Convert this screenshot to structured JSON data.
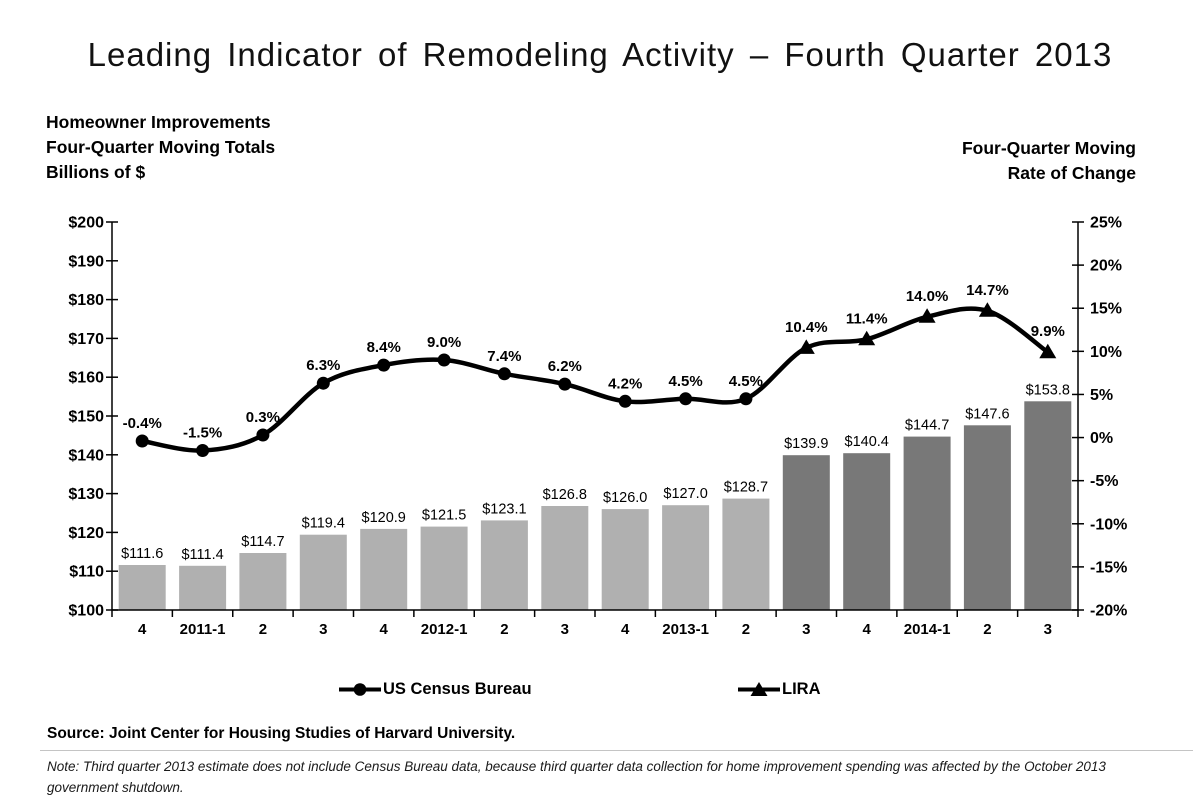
{
  "title": "Leading Indicator of Remodeling Activity – Fourth Quarter 2013",
  "left_header": {
    "lines": [
      "Homeowner Improvements",
      "Four-Quarter Moving Totals",
      "Billions of $"
    ]
  },
  "right_header": {
    "lines": [
      "Four-Quarter Moving",
      "Rate of Change"
    ]
  },
  "legend": {
    "items": [
      {
        "label": "US Census Bureau",
        "marker": "circle"
      },
      {
        "label": "LIRA",
        "marker": "triangle"
      }
    ]
  },
  "source": "Source: Joint Center for Housing Studies of Harvard University.",
  "note": "Note: Third quarter 2013 estimate does not include Census Bureau data, because third quarter data collection for home improvement spending was affected by the October 2013 government shutdown.",
  "colors": {
    "bar_light": "#b0b0b0",
    "bar_dark": "#787878",
    "line": "#000000",
    "text": "#000000",
    "divider": "#c4c4c4"
  },
  "chart_data": {
    "type": "bar+line",
    "title": "Leading Indicator of Remodeling Activity – Fourth Quarter 2013",
    "categories": [
      "4",
      "2011-1",
      "2",
      "3",
      "4",
      "2012-1",
      "2",
      "3",
      "4",
      "2013-1",
      "2",
      "3",
      "4",
      "2014-1",
      "2",
      "3"
    ],
    "left_axis": {
      "label": "Homeowner Improvements Four-Quarter Moving Totals, Billions of $",
      "min": 100,
      "max": 200,
      "ticks": [
        {
          "label": "$100",
          "value": 100
        },
        {
          "label": "$110",
          "value": 110
        },
        {
          "label": "$120",
          "value": 120
        },
        {
          "label": "$130",
          "value": 130
        },
        {
          "label": "$140",
          "value": 140
        },
        {
          "label": "$150",
          "value": 150
        },
        {
          "label": "$160",
          "value": 160
        },
        {
          "label": "$170",
          "value": 170
        },
        {
          "label": "$180",
          "value": 180
        },
        {
          "label": "$190",
          "value": 190
        },
        {
          "label": "$200",
          "value": 200
        }
      ]
    },
    "right_axis": {
      "label": "Four-Quarter Moving Rate of Change",
      "min": -20,
      "max": 25,
      "ticks": [
        {
          "label": "-20%",
          "value": -20
        },
        {
          "label": "-15%",
          "value": -15
        },
        {
          "label": "-10%",
          "value": -10
        },
        {
          "label": "-5%",
          "value": -5
        },
        {
          "label": "0%",
          "value": 0
        },
        {
          "label": "5%",
          "value": 5
        },
        {
          "label": "10%",
          "value": 10
        },
        {
          "label": "15%",
          "value": 15
        },
        {
          "label": "20%",
          "value": 20
        },
        {
          "label": "25%",
          "value": 25
        }
      ]
    },
    "series": [
      {
        "name": "Homeowner Improvements (Billions of $)",
        "type": "bar",
        "axis": "left",
        "values": [
          111.6,
          111.4,
          114.7,
          119.4,
          120.9,
          121.5,
          123.1,
          126.8,
          126.0,
          127.0,
          128.7,
          139.9,
          140.4,
          144.7,
          147.6,
          153.8
        ],
        "labels": [
          "$111.6",
          "$111.4",
          "$114.7",
          "$119.4",
          "$120.9",
          "$121.5",
          "$123.1",
          "$126.8",
          "$126.0",
          "$127.0",
          "$128.7",
          "$139.9",
          "$140.4",
          "$144.7",
          "$147.6",
          "$153.8"
        ],
        "bar_colors": [
          "light",
          "light",
          "light",
          "light",
          "light",
          "light",
          "light",
          "light",
          "light",
          "light",
          "light",
          "dark",
          "dark",
          "dark",
          "dark",
          "dark"
        ]
      },
      {
        "name": "Four-Quarter Moving Rate of Change",
        "type": "line",
        "axis": "right",
        "values": [
          -0.4,
          -1.5,
          0.3,
          6.3,
          8.4,
          9.0,
          7.4,
          6.2,
          4.2,
          4.5,
          4.5,
          10.4,
          11.4,
          14.0,
          14.7,
          9.9
        ],
        "labels": [
          "-0.4%",
          "-1.5%",
          "0.3%",
          "6.3%",
          "8.4%",
          "9.0%",
          "7.4%",
          "6.2%",
          "4.2%",
          "4.5%",
          "4.5%",
          "10.4%",
          "11.4%",
          "14.0%",
          "14.7%",
          "9.9%"
        ],
        "markers": [
          "circle",
          "circle",
          "circle",
          "circle",
          "circle",
          "circle",
          "circle",
          "circle",
          "circle",
          "circle",
          "circle",
          "triangle",
          "triangle",
          "triangle",
          "triangle",
          "triangle"
        ],
        "segments": [
          {
            "name": "US Census Bureau",
            "marker": "circle"
          },
          {
            "name": "LIRA",
            "marker": "triangle"
          }
        ]
      }
    ],
    "legend_position": "bottom",
    "grid": false
  }
}
